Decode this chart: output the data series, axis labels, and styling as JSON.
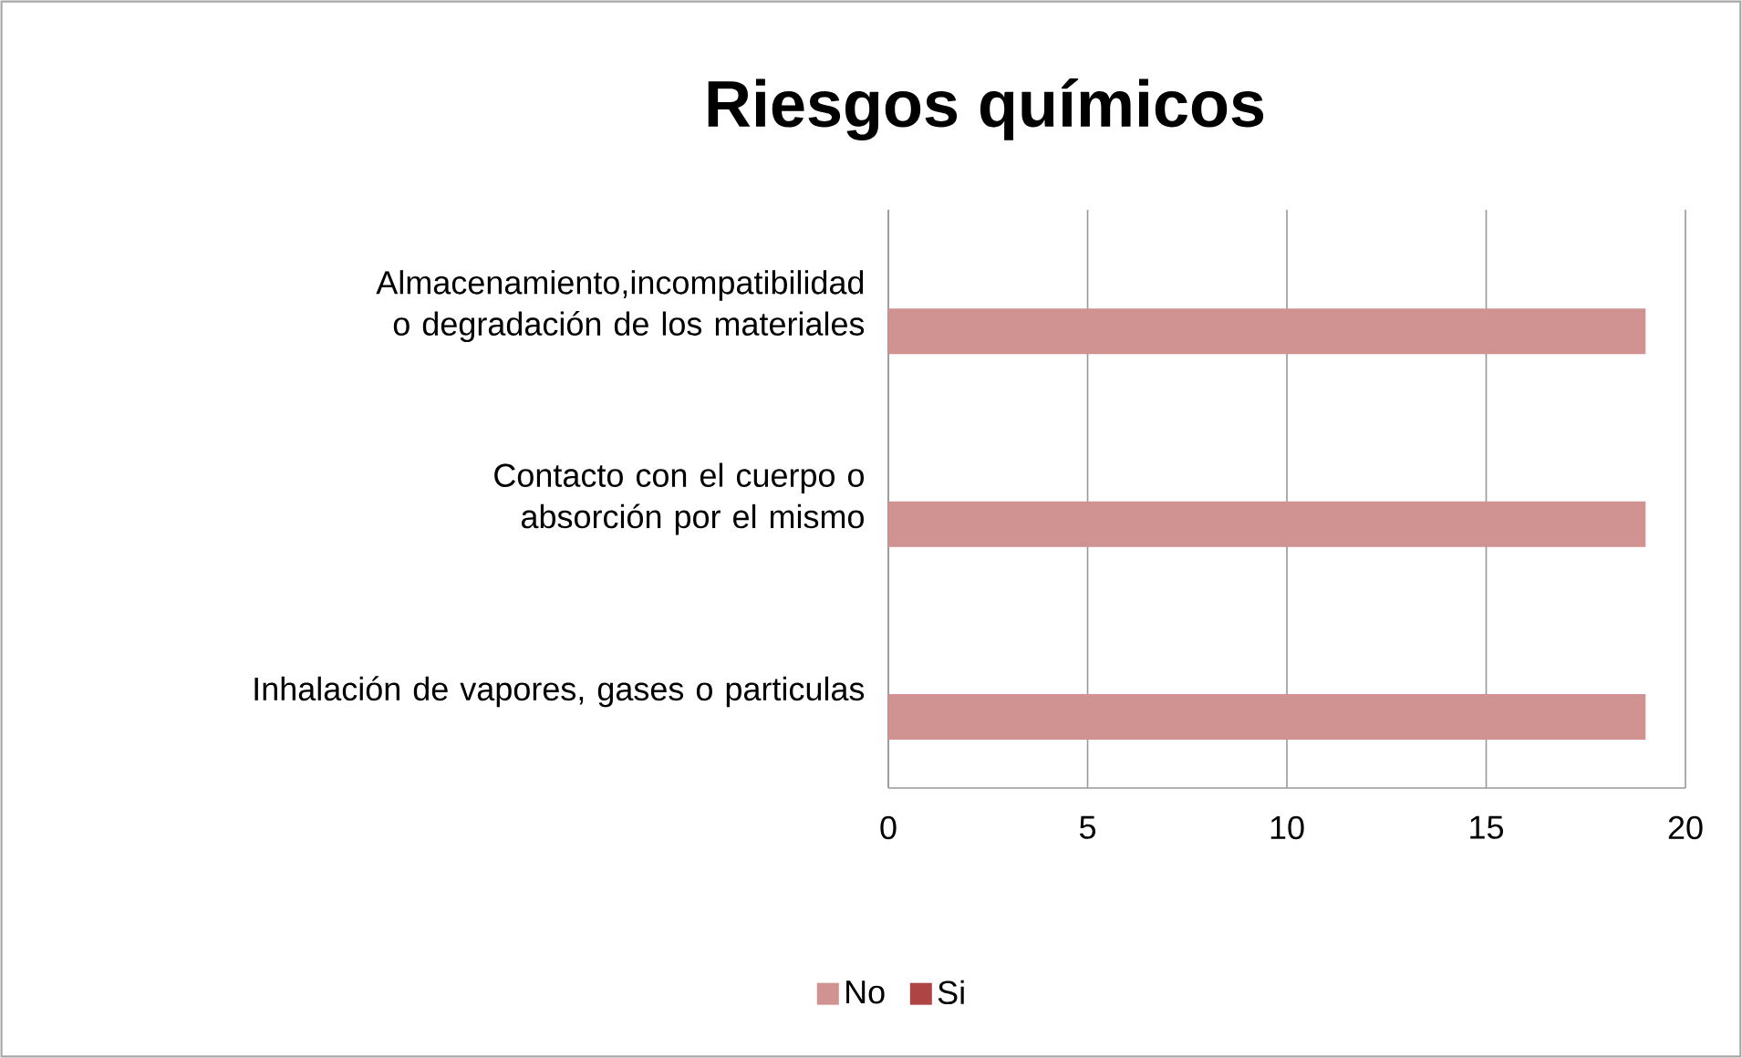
{
  "chart_data": {
    "type": "bar",
    "orientation": "horizontal",
    "title": "Riesgos químicos",
    "categories": [
      "Almacenamiento,incompatibilidad o degradación de los materiales",
      "Contacto con el cuerpo o absorción por el mismo",
      "Inhalación de vapores, gases o particulas"
    ],
    "series": [
      {
        "name": "No",
        "color": "#d09392",
        "values": [
          19,
          19,
          19
        ]
      },
      {
        "name": "Si",
        "color": "#ae4444",
        "values": [
          0,
          0,
          0
        ]
      }
    ],
    "xlim": [
      0,
      20
    ],
    "xticks": [
      0,
      5,
      10,
      15,
      20
    ],
    "grid": "x",
    "legend": "bottom"
  }
}
